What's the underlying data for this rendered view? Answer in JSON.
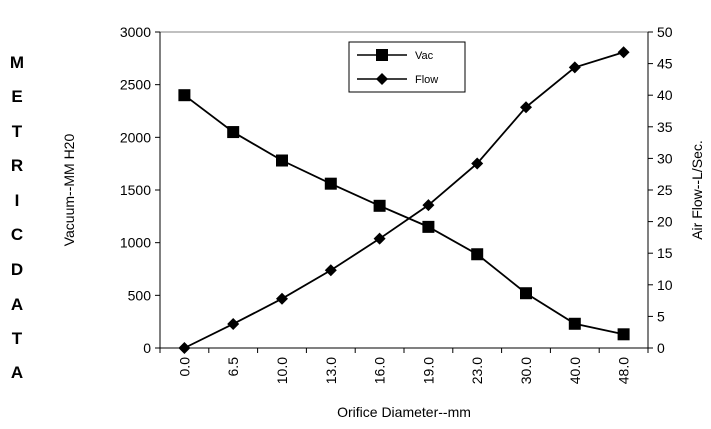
{
  "side_label": [
    "M",
    "E",
    "T",
    "R",
    "I",
    "C",
    "",
    "D",
    "A",
    "T",
    "A"
  ],
  "chart_data": {
    "type": "line",
    "categories": [
      "0.0",
      "6.5",
      "10.0",
      "13.0",
      "16.0",
      "19.0",
      "23.0",
      "30.0",
      "40.0",
      "48.0"
    ],
    "series": [
      {
        "name": "Vac",
        "axis": "left",
        "marker": "square",
        "values": [
          2400,
          2050,
          1780,
          1560,
          1350,
          1150,
          890,
          520,
          230,
          130
        ]
      },
      {
        "name": "Flow",
        "axis": "right",
        "marker": "diamond",
        "values": [
          0,
          3.8,
          7.8,
          12.3,
          17.3,
          22.6,
          29.2,
          38.1,
          44.4,
          46.8
        ]
      }
    ],
    "xlabel": "Orifice Diameter--mm",
    "ylabel": "Vacuum--MM H20",
    "y2label": "Air Flow--L/Sec.",
    "ylim": [
      0,
      3000
    ],
    "y2lim": [
      0,
      50
    ],
    "yticks": [
      "0",
      "500",
      "1000",
      "1500",
      "2000",
      "2500",
      "3000"
    ],
    "y2ticks": [
      "0",
      "5",
      "10",
      "15",
      "20",
      "25",
      "30",
      "35",
      "40",
      "45",
      "50"
    ],
    "legend_position": "top",
    "grid": false,
    "colors": {
      "line": "#000000",
      "plot_border": "#808080"
    }
  }
}
